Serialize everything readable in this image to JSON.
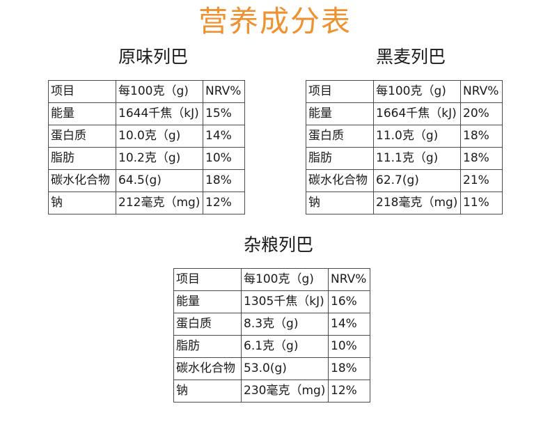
{
  "page_title": "营养成分表",
  "tables": [
    {
      "title": "原味列巴",
      "rows": [
        [
          "项目",
          "每100克（g)",
          "NRV%"
        ],
        [
          "能量",
          "1644千焦（kJ)",
          "15%"
        ],
        [
          "蛋白质",
          "10.0克（g)",
          "14%"
        ],
        [
          "脂肪",
          "10.2克（g)",
          "10%"
        ],
        [
          "碳水化合物",
          "64.5(g)",
          "18%"
        ],
        [
          "钠",
          "212毫克（mg)",
          "12%"
        ]
      ]
    },
    {
      "title": "黑麦列巴",
      "rows": [
        [
          "项目",
          "每100克（g)",
          "NRV%"
        ],
        [
          "能量",
          "1664千焦（kJ)",
          "20%"
        ],
        [
          "蛋白质",
          "11.0克（g)",
          "18%"
        ],
        [
          "脂肪",
          "11.1克（g)",
          "18%"
        ],
        [
          "碳水化合物",
          "62.7(g)",
          "21%"
        ],
        [
          "钠",
          "218毫克（mg)",
          "11%"
        ]
      ]
    },
    {
      "title": "杂粮列巴",
      "rows": [
        [
          "项目",
          "每100克（g)",
          "NRV%"
        ],
        [
          "能量",
          "1305千焦（kJ)",
          "16%"
        ],
        [
          "蛋白质",
          "8.3克（g)",
          "14%"
        ],
        [
          "脂肪",
          "6.1克（g)",
          "10%"
        ],
        [
          "碳水化合物",
          "53.0(g)",
          "18%"
        ],
        [
          "钠",
          "230毫克（mg)",
          "12%"
        ]
      ]
    }
  ]
}
